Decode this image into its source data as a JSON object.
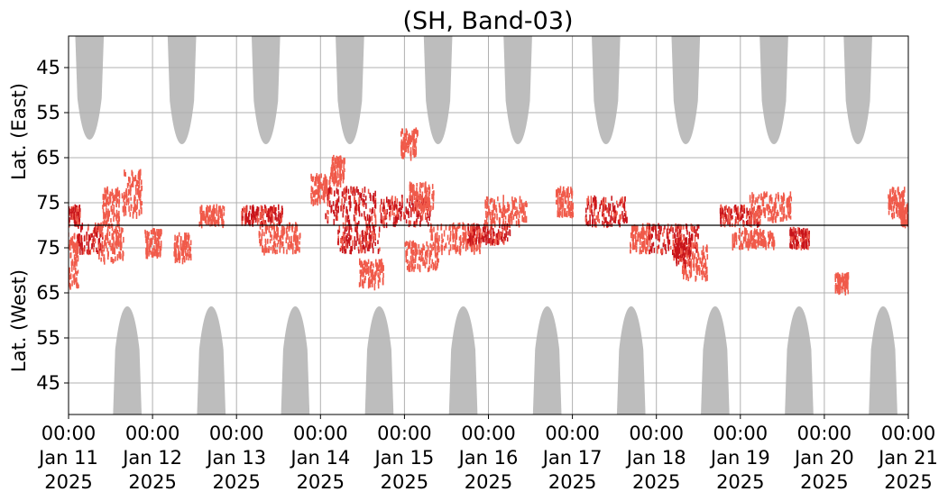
{
  "chart_data": {
    "type": "heatmap",
    "title": "(SH, Band-03)",
    "ylabel_upper": "Lat. (East)",
    "ylabel_lower": "Lat. (West)",
    "y_ticks_east": [
      45,
      55,
      65,
      75
    ],
    "y_ticks_west": [
      75,
      65,
      55,
      45
    ],
    "x_ticks": [
      {
        "time": "00:00",
        "date": "Jan 11",
        "year": "2025"
      },
      {
        "time": "00:00",
        "date": "Jan 12",
        "year": "2025"
      },
      {
        "time": "00:00",
        "date": "Jan 13",
        "year": "2025"
      },
      {
        "time": "00:00",
        "date": "Jan 14",
        "year": "2025"
      },
      {
        "time": "00:00",
        "date": "Jan 15",
        "year": "2025"
      },
      {
        "time": "00:00",
        "date": "Jan 16",
        "year": "2025"
      },
      {
        "time": "00:00",
        "date": "Jan 17",
        "year": "2025"
      },
      {
        "time": "00:00",
        "date": "Jan 18",
        "year": "2025"
      },
      {
        "time": "00:00",
        "date": "Jan 19",
        "year": "2025"
      },
      {
        "time": "00:00",
        "date": "Jan 20",
        "year": "2025"
      },
      {
        "time": "00:00",
        "date": "Jan 21",
        "year": "2025"
      }
    ],
    "xlim": [
      "2025-01-11 00:00",
      "2025-01-21 00:00"
    ],
    "ylim_east": [
      80,
      38
    ],
    "ylim_west": [
      80,
      38
    ],
    "grid": true,
    "colors": {
      "no_data": "#bdbdbd",
      "activity_light": "#f05a4a",
      "activity_dark": "#c8141a",
      "divider": "#000000",
      "grid": "#b0b0b0"
    },
    "no_data_east": [
      {
        "day": 0.25,
        "half_width_days": 0.17,
        "min_lat": 61
      },
      {
        "day": 1.35,
        "half_width_days": 0.17,
        "min_lat": 62
      },
      {
        "day": 2.35,
        "half_width_days": 0.17,
        "min_lat": 62
      },
      {
        "day": 3.35,
        "half_width_days": 0.17,
        "min_lat": 62
      },
      {
        "day": 4.4,
        "half_width_days": 0.17,
        "min_lat": 62
      },
      {
        "day": 5.35,
        "half_width_days": 0.17,
        "min_lat": 62
      },
      {
        "day": 6.4,
        "half_width_days": 0.17,
        "min_lat": 62
      },
      {
        "day": 7.35,
        "half_width_days": 0.17,
        "min_lat": 62
      },
      {
        "day": 8.4,
        "half_width_days": 0.17,
        "min_lat": 62
      },
      {
        "day": 9.4,
        "half_width_days": 0.17,
        "min_lat": 62
      }
    ],
    "no_data_west": [
      {
        "day": 0.7,
        "half_width_days": 0.17,
        "min_lat": 62
      },
      {
        "day": 1.7,
        "half_width_days": 0.17,
        "min_lat": 62
      },
      {
        "day": 2.7,
        "half_width_days": 0.17,
        "min_lat": 62
      },
      {
        "day": 3.7,
        "half_width_days": 0.17,
        "min_lat": 62
      },
      {
        "day": 4.7,
        "half_width_days": 0.17,
        "min_lat": 62
      },
      {
        "day": 5.7,
        "half_width_days": 0.17,
        "min_lat": 62
      },
      {
        "day": 6.7,
        "half_width_days": 0.17,
        "min_lat": 62
      },
      {
        "day": 7.7,
        "half_width_days": 0.17,
        "min_lat": 62
      },
      {
        "day": 8.7,
        "half_width_days": 0.17,
        "min_lat": 62
      },
      {
        "day": 9.7,
        "half_width_days": 0.17,
        "min_lat": 62
      }
    ],
    "activity_clusters": [
      {
        "day": 0.05,
        "hemisphere": "east",
        "lat": 78,
        "day_spread": 0.08,
        "lat_spread": 2,
        "intensity": "dark"
      },
      {
        "day": 0.05,
        "hemisphere": "west",
        "lat": 72,
        "day_spread": 0.06,
        "lat_spread": 6,
        "intensity": "light"
      },
      {
        "day": 0.25,
        "hemisphere": "west",
        "lat": 77,
        "day_spread": 0.15,
        "lat_spread": 3,
        "intensity": "dark"
      },
      {
        "day": 0.5,
        "hemisphere": "west",
        "lat": 76,
        "day_spread": 0.15,
        "lat_spread": 4,
        "intensity": "light"
      },
      {
        "day": 0.5,
        "hemisphere": "east",
        "lat": 76,
        "day_spread": 0.1,
        "lat_spread": 4,
        "intensity": "light"
      },
      {
        "day": 0.75,
        "hemisphere": "east",
        "lat": 73,
        "day_spread": 0.12,
        "lat_spread": 5,
        "intensity": "light"
      },
      {
        "day": 1.0,
        "hemisphere": "west",
        "lat": 76,
        "day_spread": 0.1,
        "lat_spread": 3,
        "intensity": "light"
      },
      {
        "day": 1.35,
        "hemisphere": "west",
        "lat": 75,
        "day_spread": 0.1,
        "lat_spread": 3,
        "intensity": "light"
      },
      {
        "day": 1.7,
        "hemisphere": "east",
        "lat": 78,
        "day_spread": 0.15,
        "lat_spread": 2,
        "intensity": "light"
      },
      {
        "day": 2.3,
        "hemisphere": "east",
        "lat": 78,
        "day_spread": 0.25,
        "lat_spread": 2,
        "intensity": "dark"
      },
      {
        "day": 2.5,
        "hemisphere": "west",
        "lat": 77,
        "day_spread": 0.25,
        "lat_spread": 3,
        "intensity": "light"
      },
      {
        "day": 3.0,
        "hemisphere": "east",
        "lat": 72,
        "day_spread": 0.12,
        "lat_spread": 3,
        "intensity": "light"
      },
      {
        "day": 3.35,
        "hemisphere": "east",
        "lat": 76,
        "day_spread": 0.3,
        "lat_spread": 4,
        "intensity": "dark"
      },
      {
        "day": 3.45,
        "hemisphere": "west",
        "lat": 77,
        "day_spread": 0.25,
        "lat_spread": 3,
        "intensity": "dark"
      },
      {
        "day": 3.6,
        "hemisphere": "west",
        "lat": 69,
        "day_spread": 0.15,
        "lat_spread": 3,
        "intensity": "light"
      },
      {
        "day": 3.2,
        "hemisphere": "east",
        "lat": 68,
        "day_spread": 0.08,
        "lat_spread": 3,
        "intensity": "light"
      },
      {
        "day": 4.0,
        "hemisphere": "east",
        "lat": 77,
        "day_spread": 0.3,
        "lat_spread": 3,
        "intensity": "dark"
      },
      {
        "day": 4.2,
        "hemisphere": "east",
        "lat": 74,
        "day_spread": 0.15,
        "lat_spread": 3,
        "intensity": "light"
      },
      {
        "day": 4.2,
        "hemisphere": "west",
        "lat": 73,
        "day_spread": 0.2,
        "lat_spread": 3,
        "intensity": "light"
      },
      {
        "day": 4.05,
        "hemisphere": "east",
        "lat": 62,
        "day_spread": 0.1,
        "lat_spread": 3,
        "intensity": "light"
      },
      {
        "day": 4.6,
        "hemisphere": "west",
        "lat": 77,
        "day_spread": 0.3,
        "lat_spread": 3,
        "intensity": "light"
      },
      {
        "day": 5.0,
        "hemisphere": "west",
        "lat": 78,
        "day_spread": 0.25,
        "lat_spread": 2,
        "intensity": "dark"
      },
      {
        "day": 5.2,
        "hemisphere": "east",
        "lat": 77,
        "day_spread": 0.25,
        "lat_spread": 3,
        "intensity": "light"
      },
      {
        "day": 5.9,
        "hemisphere": "east",
        "lat": 75,
        "day_spread": 0.1,
        "lat_spread": 3,
        "intensity": "light"
      },
      {
        "day": 6.4,
        "hemisphere": "east",
        "lat": 77,
        "day_spread": 0.25,
        "lat_spread": 3,
        "intensity": "dark"
      },
      {
        "day": 6.8,
        "hemisphere": "west",
        "lat": 77,
        "day_spread": 0.12,
        "lat_spread": 3,
        "intensity": "light"
      },
      {
        "day": 7.2,
        "hemisphere": "west",
        "lat": 77,
        "day_spread": 0.3,
        "lat_spread": 3,
        "intensity": "dark"
      },
      {
        "day": 7.45,
        "hemisphere": "west",
        "lat": 72,
        "day_spread": 0.15,
        "lat_spread": 4,
        "intensity": "light"
      },
      {
        "day": 7.3,
        "hemisphere": "west",
        "lat": 74,
        "day_spread": 0.1,
        "lat_spread": 3,
        "intensity": "dark"
      },
      {
        "day": 8.0,
        "hemisphere": "east",
        "lat": 78,
        "day_spread": 0.25,
        "lat_spread": 2,
        "intensity": "dark"
      },
      {
        "day": 8.35,
        "hemisphere": "east",
        "lat": 76,
        "day_spread": 0.25,
        "lat_spread": 3,
        "intensity": "light"
      },
      {
        "day": 8.15,
        "hemisphere": "west",
        "lat": 77,
        "day_spread": 0.25,
        "lat_spread": 2,
        "intensity": "light"
      },
      {
        "day": 8.7,
        "hemisphere": "west",
        "lat": 77,
        "day_spread": 0.12,
        "lat_spread": 2,
        "intensity": "dark"
      },
      {
        "day": 9.2,
        "hemisphere": "west",
        "lat": 67,
        "day_spread": 0.08,
        "lat_spread": 2,
        "intensity": "light"
      },
      {
        "day": 9.85,
        "hemisphere": "east",
        "lat": 75,
        "day_spread": 0.1,
        "lat_spread": 3,
        "intensity": "light"
      },
      {
        "day": 9.95,
        "hemisphere": "east",
        "lat": 78,
        "day_spread": 0.05,
        "lat_spread": 3,
        "intensity": "light"
      }
    ]
  }
}
